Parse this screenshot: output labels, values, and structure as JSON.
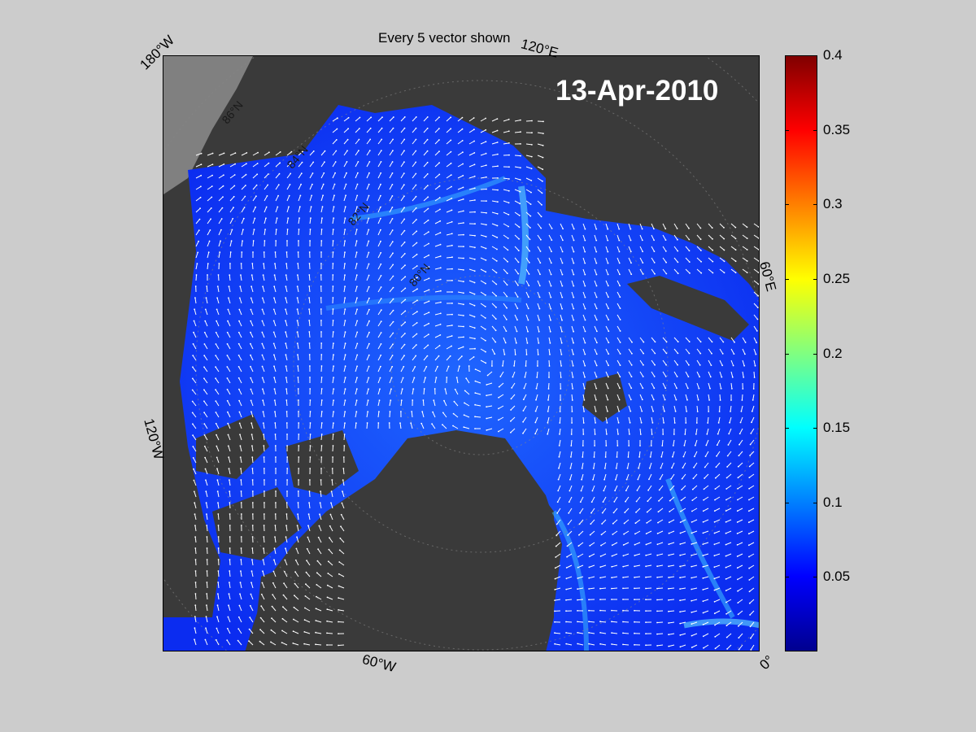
{
  "title": "Every 5 vector shown",
  "date": "13-Apr-2010",
  "longitude_labels": {
    "w180": "180°W",
    "e120": "120°E",
    "e60": "60°E",
    "w120": "120°W",
    "w60": "60°W",
    "zero": "0°"
  },
  "latitude_labels": [
    "86°N",
    "84°N",
    "82°N",
    "80°N"
  ],
  "colors": {
    "background": "#cccccc",
    "land": "#3a3a3a",
    "ocean_edge": "#808080",
    "vector": "#ffffff"
  },
  "colorbar": {
    "colormap": "jet",
    "min": 0,
    "max": 0.4,
    "ticks": [
      "0.05",
      "0.1",
      "0.15",
      "0.2",
      "0.25",
      "0.3",
      "0.35",
      "0.4"
    ]
  }
}
